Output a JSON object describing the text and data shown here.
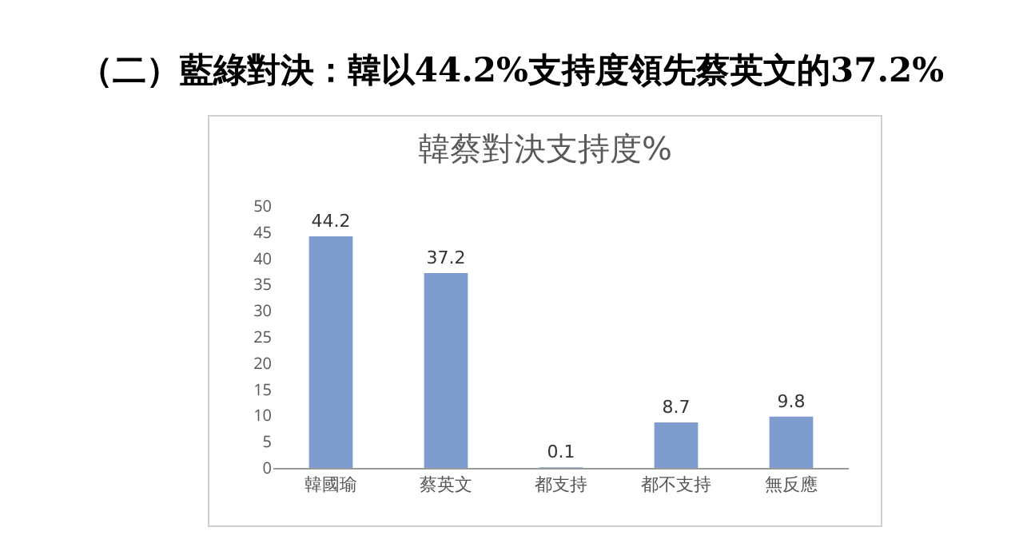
{
  "chart_data": {
    "type": "bar",
    "title": "（二）藍綠對決：韓以44.2%支持度領先蔡英文的37.2%",
    "subtitle": "韓蔡對決支持度%",
    "categories": [
      "韓國瑜",
      "蔡英文",
      "都支持",
      "都不支持",
      "無反應"
    ],
    "values": [
      44.2,
      37.2,
      0.1,
      8.7,
      9.8
    ],
    "color": "#7f9ccf",
    "ylim": [
      0,
      50
    ],
    "yticks": [
      0,
      5,
      10,
      15,
      20,
      25,
      30,
      35,
      40,
      45,
      50
    ],
    "grid": false,
    "data_labels": true,
    "legend": false
  }
}
